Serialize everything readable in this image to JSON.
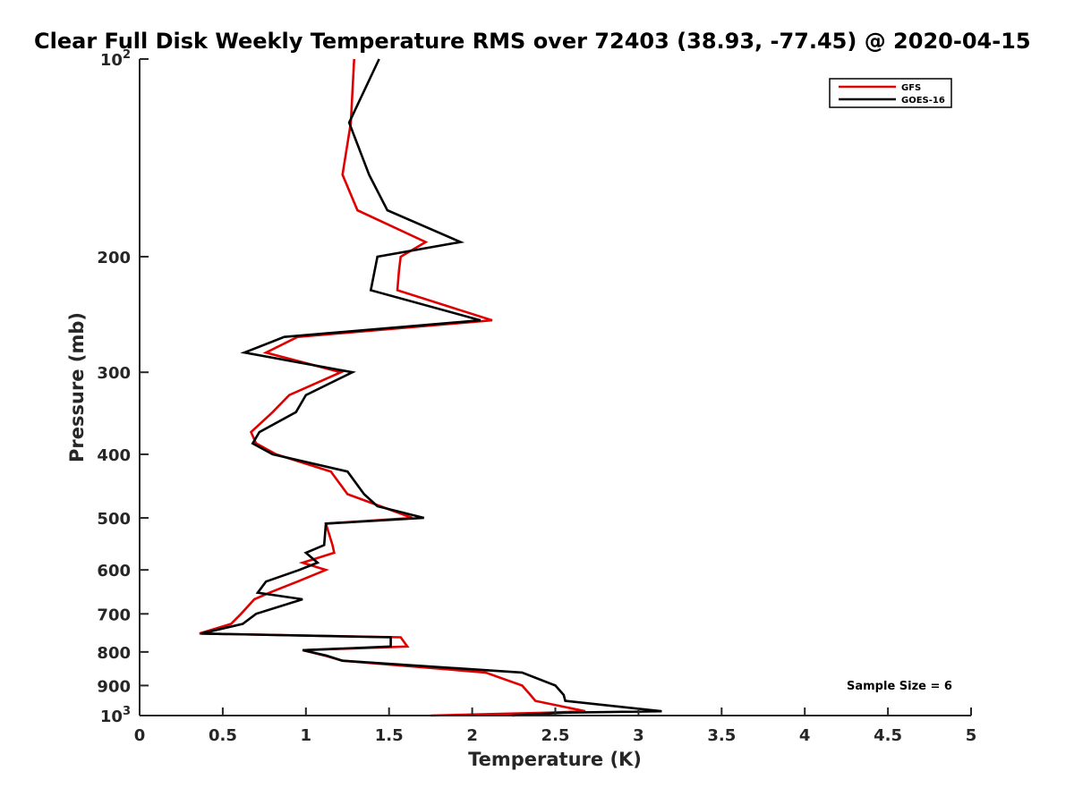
{
  "chart_data": {
    "type": "line",
    "title": "Clear Full Disk Weekly Temperature RMS over 72403 (38.93, -77.45) @ 2020-04-15",
    "xlabel": "Temperature (K)",
    "ylabel": "Pressure (mb)",
    "xlim": [
      0,
      5
    ],
    "ylim": [
      100,
      1000
    ],
    "y_scale": "log",
    "y_reversed": true,
    "x_ticks": [
      "0",
      "0.5",
      "1",
      "1.5",
      "2",
      "2.5",
      "3",
      "3.5",
      "4",
      "4.5",
      "5"
    ],
    "y_ticks": [
      {
        "value": 100,
        "label": "10",
        "exponent": "2"
      },
      {
        "value": 200,
        "label": "200"
      },
      {
        "value": 300,
        "label": "300"
      },
      {
        "value": 400,
        "label": "400"
      },
      {
        "value": 500,
        "label": "500"
      },
      {
        "value": 600,
        "label": "600"
      },
      {
        "value": 700,
        "label": "700"
      },
      {
        "value": 800,
        "label": "800"
      },
      {
        "value": 900,
        "label": "900"
      },
      {
        "value": 1000,
        "label": "10",
        "exponent": "3"
      }
    ],
    "grid": false,
    "legend": "top-right",
    "annotation": "Sample Size = 6",
    "series": [
      {
        "name": "GFS",
        "color": "#e00000",
        "points": [
          [
            1.29,
            100
          ],
          [
            1.27,
            125
          ],
          [
            1.22,
            150
          ],
          [
            1.31,
            170
          ],
          [
            1.72,
            190
          ],
          [
            1.57,
            200
          ],
          [
            1.56,
            210
          ],
          [
            1.55,
            225
          ],
          [
            2.12,
            250
          ],
          [
            0.95,
            265
          ],
          [
            0.76,
            280
          ],
          [
            1.21,
            300
          ],
          [
            0.9,
            325
          ],
          [
            0.8,
            345
          ],
          [
            0.67,
            370
          ],
          [
            0.7,
            385
          ],
          [
            0.82,
            400
          ],
          [
            1.15,
            425
          ],
          [
            1.25,
            460
          ],
          [
            1.64,
            500
          ],
          [
            1.12,
            510
          ],
          [
            1.16,
            550
          ],
          [
            1.17,
            565
          ],
          [
            0.98,
            585
          ],
          [
            1.12,
            600
          ],
          [
            0.95,
            625
          ],
          [
            0.78,
            650
          ],
          [
            0.69,
            665
          ],
          [
            0.61,
            700
          ],
          [
            0.55,
            725
          ],
          [
            0.36,
            750
          ],
          [
            1.57,
            760
          ],
          [
            1.61,
            785
          ],
          [
            0.98,
            795
          ],
          [
            1.11,
            810
          ],
          [
            1.22,
            825
          ],
          [
            2.08,
            860
          ],
          [
            2.3,
            900
          ],
          [
            2.35,
            930
          ],
          [
            2.38,
            950
          ],
          [
            2.68,
            985
          ],
          [
            2.45,
            990
          ],
          [
            1.75,
            1000
          ]
        ]
      },
      {
        "name": "GOES-16",
        "color": "#000000",
        "points": [
          [
            1.44,
            100
          ],
          [
            1.26,
            125
          ],
          [
            1.38,
            150
          ],
          [
            1.49,
            170
          ],
          [
            1.93,
            190
          ],
          [
            1.43,
            200
          ],
          [
            1.39,
            225
          ],
          [
            2.05,
            250
          ],
          [
            0.87,
            265
          ],
          [
            0.63,
            280
          ],
          [
            1.28,
            300
          ],
          [
            1.0,
            325
          ],
          [
            0.94,
            345
          ],
          [
            0.72,
            370
          ],
          [
            0.68,
            385
          ],
          [
            0.8,
            400
          ],
          [
            1.25,
            425
          ],
          [
            1.35,
            460
          ],
          [
            1.43,
            480
          ],
          [
            1.71,
            500
          ],
          [
            1.12,
            510
          ],
          [
            1.11,
            550
          ],
          [
            1.0,
            565
          ],
          [
            1.07,
            585
          ],
          [
            0.96,
            600
          ],
          [
            0.76,
            625
          ],
          [
            0.71,
            650
          ],
          [
            0.98,
            665
          ],
          [
            0.7,
            700
          ],
          [
            0.62,
            725
          ],
          [
            0.37,
            750
          ],
          [
            1.51,
            760
          ],
          [
            1.51,
            785
          ],
          [
            0.98,
            795
          ],
          [
            1.12,
            810
          ],
          [
            1.22,
            825
          ],
          [
            2.3,
            860
          ],
          [
            2.5,
            900
          ],
          [
            2.55,
            930
          ],
          [
            2.56,
            950
          ],
          [
            3.14,
            985
          ],
          [
            2.55,
            990
          ],
          [
            2.24,
            1000
          ]
        ]
      }
    ]
  }
}
